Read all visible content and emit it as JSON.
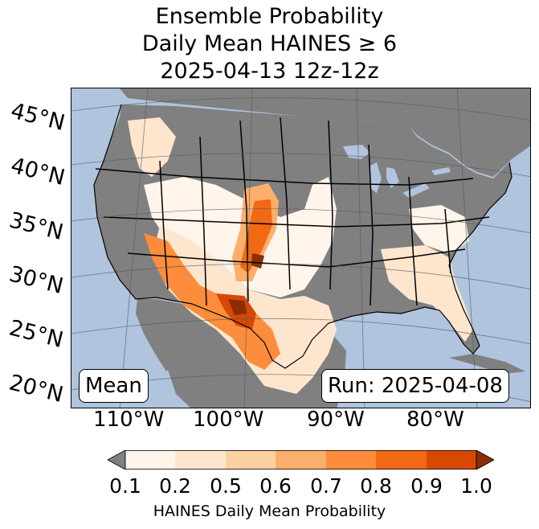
{
  "title": {
    "line1": "Ensemble Probability",
    "line2": "Daily Mean HAINES ≥ 6",
    "line3": "2025-04-13 12z-12z"
  },
  "map": {
    "lat_labels": [
      "45°N",
      "40°N",
      "35°N",
      "30°N",
      "25°N",
      "20°N"
    ],
    "lon_labels": [
      "110°W",
      "100°W",
      "90°W",
      "80°W"
    ],
    "mean_label": "Mean",
    "run_label": "Run: 2025-04-08",
    "colors": {
      "ocean": "#b0c4de",
      "masked_land": "#808080",
      "border": "#000000"
    }
  },
  "colorbar": {
    "ticks": [
      "0.1",
      "0.2",
      "0.5",
      "0.6",
      "0.7",
      "0.8",
      "0.9",
      "1.0"
    ],
    "colors": [
      "#fff5eb",
      "#fee6ce",
      "#fdd0a2",
      "#fdae6b",
      "#fd8d3c",
      "#f16913",
      "#d94801",
      "#8c2d04"
    ],
    "under_color": "#808080",
    "label": "HAINES Daily Mean Probability"
  }
}
